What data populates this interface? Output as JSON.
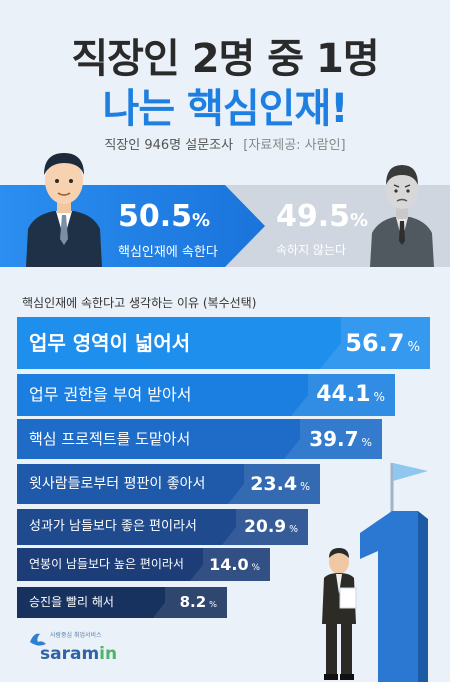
{
  "title_line1": "직장인 2명 중 1명",
  "title_line2": "나는 핵심인재!",
  "survey_note": "직장인 946명 설문조사",
  "source_note": "[자료제공: 사람인]",
  "split": {
    "yes_value": "50.5",
    "yes_unit": "%",
    "yes_label": "핵심인재에 속한다",
    "no_value": "49.5",
    "no_unit": "%",
    "no_label": "속하지 않는다"
  },
  "reasons_title": "핵심인재에 속한다고 생각하는 이유 (복수선택)",
  "chart_data": {
    "type": "bar",
    "title": "핵심인재에 속한다고 생각하는 이유 (복수선택)",
    "categories": [
      "업무 영역이 넓어서",
      "업무 권한을 부여 받아서",
      "핵심 프로젝트를 도맡아서",
      "윗사람들로부터 평판이 좋아서",
      "성과가 남들보다 좋은 편이라서",
      "연봉이 남들보다 높은 편이라서",
      "승진을 빨리 해서"
    ],
    "values": [
      56.7,
      44.1,
      39.7,
      23.4,
      20.9,
      14.0,
      8.2
    ],
    "value_labels": [
      "56.7",
      "44.1",
      "39.7",
      "23.4",
      "20.9",
      "14.0",
      "8.2"
    ],
    "unit": "%"
  },
  "logo": {
    "tagline": "사람중심 취업서비스",
    "brand": "saram",
    "brand_suffix": "in"
  },
  "colors": {
    "title_blue": "#1e7fe0",
    "bar_colors": [
      "#1f8fee",
      "#1a7fe0",
      "#1e6bc8",
      "#1e5aa9",
      "#1f4a8e",
      "#1c3d78",
      "#18325f"
    ]
  }
}
